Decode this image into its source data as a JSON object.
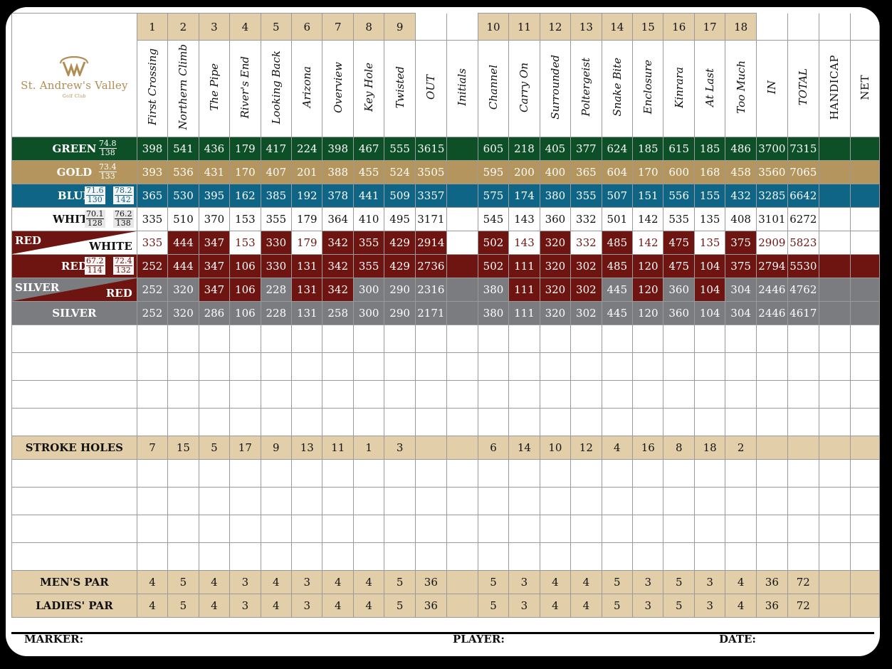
{
  "club": {
    "name": "St. Andrew's Valley",
    "sub": "Golf Club"
  },
  "holes_front": [
    {
      "num": "1",
      "name": "First Crossing"
    },
    {
      "num": "2",
      "name": "Northern Climb"
    },
    {
      "num": "3",
      "name": "The Pipe"
    },
    {
      "num": "4",
      "name": "River's End"
    },
    {
      "num": "5",
      "name": "Looking Back"
    },
    {
      "num": "6",
      "name": "Arizona"
    },
    {
      "num": "7",
      "name": "Overview"
    },
    {
      "num": "8",
      "name": "Key Hole"
    },
    {
      "num": "9",
      "name": "Twisted"
    }
  ],
  "holes_back": [
    {
      "num": "10",
      "name": "Channel"
    },
    {
      "num": "11",
      "name": "Carry On"
    },
    {
      "num": "12",
      "name": "Surrounded"
    },
    {
      "num": "13",
      "name": "Poltergeist"
    },
    {
      "num": "14",
      "name": "Snake Bite"
    },
    {
      "num": "15",
      "name": "Enclosure"
    },
    {
      "num": "16",
      "name": "Kinrara"
    },
    {
      "num": "17",
      "name": "At Last"
    },
    {
      "num": "18",
      "name": "Too Much"
    }
  ],
  "headers": {
    "out": "OUT",
    "initials": "Initials",
    "in": "IN",
    "total": "TOTAL",
    "handicap": "HANDICAP",
    "net": "NET"
  },
  "tees": [
    {
      "key": "green",
      "label": "GREEN",
      "ratings": [
        [
          "74.8",
          "138"
        ]
      ],
      "front": [
        "398",
        "541",
        "436",
        "179",
        "417",
        "224",
        "398",
        "467",
        "555"
      ],
      "out": "3615",
      "back": [
        "605",
        "218",
        "405",
        "377",
        "624",
        "185",
        "615",
        "185",
        "486"
      ],
      "in": "3700",
      "total": "7315"
    },
    {
      "key": "gold",
      "label": "GOLD",
      "ratings": [
        [
          "73.4",
          "133"
        ]
      ],
      "front": [
        "393",
        "536",
        "431",
        "170",
        "407",
        "201",
        "388",
        "455",
        "524"
      ],
      "out": "3505",
      "back": [
        "595",
        "200",
        "400",
        "365",
        "604",
        "170",
        "600",
        "168",
        "458"
      ],
      "in": "3560",
      "total": "7065"
    },
    {
      "key": "blue",
      "label": "BLUE",
      "ratings": [
        [
          "71.6",
          "130"
        ],
        [
          "78.2",
          "142"
        ]
      ],
      "front": [
        "365",
        "530",
        "395",
        "162",
        "385",
        "192",
        "378",
        "441",
        "509"
      ],
      "out": "3357",
      "back": [
        "575",
        "174",
        "380",
        "355",
        "507",
        "151",
        "556",
        "155",
        "432"
      ],
      "in": "3285",
      "total": "6642"
    },
    {
      "key": "white",
      "label": "WHITE",
      "ratings": [
        [
          "70.1",
          "128"
        ],
        [
          "76.2",
          "138"
        ]
      ],
      "front": [
        "335",
        "510",
        "370",
        "153",
        "355",
        "179",
        "364",
        "410",
        "495"
      ],
      "out": "3171",
      "back": [
        "545",
        "143",
        "360",
        "332",
        "501",
        "142",
        "535",
        "135",
        "408"
      ],
      "in": "3101",
      "total": "6272"
    },
    {
      "key": "redwhite",
      "label_top": "RED",
      "label_bot": "WHITE",
      "front": [
        "335",
        "444",
        "347",
        "153",
        "330",
        "179",
        "342",
        "355",
        "429"
      ],
      "out": "2914",
      "back": [
        "502",
        "143",
        "320",
        "332",
        "485",
        "142",
        "475",
        "135",
        "375"
      ],
      "in": "2909",
      "total": "5823"
    },
    {
      "key": "red",
      "label": "RED",
      "ratings": [
        [
          "67.2",
          "114"
        ],
        [
          "72.4",
          "132"
        ]
      ],
      "front": [
        "252",
        "444",
        "347",
        "106",
        "330",
        "131",
        "342",
        "355",
        "429"
      ],
      "out": "2736",
      "back": [
        "502",
        "111",
        "320",
        "302",
        "485",
        "120",
        "475",
        "104",
        "375"
      ],
      "in": "2794",
      "total": "5530"
    },
    {
      "key": "silverred",
      "label_top": "SILVER",
      "label_bot": "RED",
      "front": [
        "252",
        "320",
        "347",
        "106",
        "228",
        "131",
        "342",
        "300",
        "290"
      ],
      "out": "2316",
      "back": [
        "380",
        "111",
        "320",
        "302",
        "445",
        "120",
        "360",
        "104",
        "304"
      ],
      "in": "2446",
      "total": "4762"
    },
    {
      "key": "silver",
      "label": "SILVER",
      "front": [
        "252",
        "320",
        "286",
        "106",
        "228",
        "131",
        "258",
        "300",
        "290"
      ],
      "out": "2171",
      "back": [
        "380",
        "111",
        "320",
        "302",
        "445",
        "120",
        "360",
        "104",
        "304"
      ],
      "in": "2446",
      "total": "4617"
    }
  ],
  "stroke": {
    "label": "STROKE HOLES",
    "front": [
      "7",
      "15",
      "5",
      "17",
      "9",
      "13",
      "11",
      "1",
      "3"
    ],
    "back": [
      "6",
      "14",
      "10",
      "12",
      "4",
      "16",
      "8",
      "18",
      "2"
    ]
  },
  "mens_par": {
    "label": "MEN'S PAR",
    "front": [
      "4",
      "5",
      "4",
      "3",
      "4",
      "3",
      "4",
      "4",
      "5"
    ],
    "out": "36",
    "back": [
      "5",
      "3",
      "4",
      "4",
      "5",
      "3",
      "5",
      "3",
      "4"
    ],
    "in": "36",
    "total": "72"
  },
  "ladies_par": {
    "label": "LADIES' PAR",
    "front": [
      "4",
      "5",
      "4",
      "3",
      "4",
      "3",
      "4",
      "4",
      "5"
    ],
    "out": "36",
    "back": [
      "5",
      "3",
      "4",
      "4",
      "5",
      "3",
      "5",
      "3",
      "4"
    ],
    "in": "36",
    "total": "72"
  },
  "footer": {
    "marker": "MARKER:",
    "player": "PLAYER:",
    "date": "DATE:"
  },
  "colors": {
    "green": "#0d4f26",
    "gold": "#b3955d",
    "blue": "#0f6586",
    "red": "#6e1411",
    "silver": "#7b7c80",
    "tan": "#e2cfaa"
  }
}
